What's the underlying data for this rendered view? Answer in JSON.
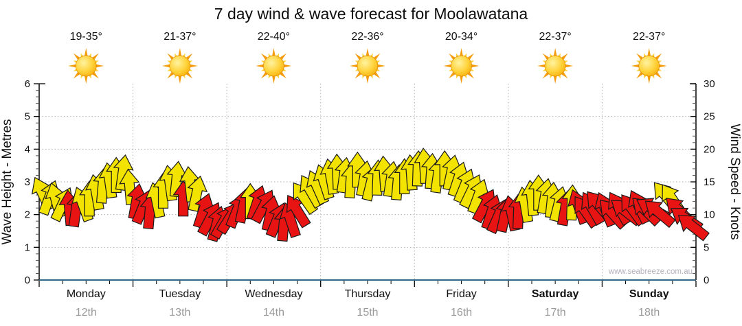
{
  "title": "7 day wind & wave forecast for Moolawatana",
  "watermark": "www.seabreeze.com.au",
  "chart_data": {
    "type": "wind_arrow_timeseries",
    "title": "7 day wind & wave forecast for Moolawatana",
    "left_axis": {
      "label": "Wave Height - Metres",
      "min": 0,
      "max": 6,
      "major_tick_step": 1,
      "minor_tick_step": 0.2
    },
    "right_axis": {
      "label": "Wind Speed - Knots",
      "min": 0,
      "max": 30,
      "major_tick_step": 5,
      "minor_tick_step": 1
    },
    "grid": "dotted, horizontal lines at each metre (1-5), vertical lines at day boundaries",
    "days": [
      {
        "name": "Monday",
        "date": "12th",
        "temp": "19-35°",
        "bold": false
      },
      {
        "name": "Tuesday",
        "date": "13th",
        "temp": "21-37°",
        "bold": false
      },
      {
        "name": "Wednesday",
        "date": "14th",
        "temp": "22-40°",
        "bold": false
      },
      {
        "name": "Thursday",
        "date": "15th",
        "temp": "22-36°",
        "bold": false
      },
      {
        "name": "Friday",
        "date": "16th",
        "temp": "20-34°",
        "bold": false
      },
      {
        "name": "Saturday",
        "date": "17th",
        "temp": "22-37°",
        "bold": true
      },
      {
        "name": "Sunday",
        "date": "18th",
        "temp": "22-37°",
        "bold": true
      }
    ],
    "colors": {
      "moderate_wind_arrow": "#f3e300",
      "light_wind_arrow": "#e81313",
      "arrow_outline": "#1a1a1a",
      "x_axis_line": "#336688",
      "grid_line": "#b0b0b0",
      "date_text": "#999999",
      "watermark_text": "#b3b3bb",
      "sun_core": "#f7a600",
      "sun_ray_long": "#f49c0b",
      "sun_ray_short": "#ffd23d"
    },
    "arrows_per_day": 14,
    "arrow_format": [
      "wind_speed_knots",
      "direction_deg_clockwise_from_up",
      "color_key(y=moderate,r=light)"
    ],
    "arrows": [
      [
        13.2,
        -25,
        "y"
      ],
      [
        12.6,
        20,
        "y"
      ],
      [
        12.2,
        -15,
        "y"
      ],
      [
        11.6,
        25,
        "y"
      ],
      [
        11.0,
        -5,
        "r"
      ],
      [
        10.8,
        8,
        "r"
      ],
      [
        11.6,
        -20,
        "y"
      ],
      [
        12.4,
        0,
        "y"
      ],
      [
        13.4,
        -10,
        "y"
      ],
      [
        14.4,
        5,
        "y"
      ],
      [
        15.2,
        -8,
        "y"
      ],
      [
        16.0,
        0,
        "y"
      ],
      [
        16.4,
        8,
        "y"
      ],
      [
        14.2,
        -5,
        "y"
      ],
      [
        12.0,
        10,
        "r"
      ],
      [
        11.2,
        22,
        "r"
      ],
      [
        10.5,
        5,
        "r"
      ],
      [
        12.2,
        -12,
        "y"
      ],
      [
        13.6,
        0,
        "y"
      ],
      [
        14.8,
        -8,
        "y"
      ],
      [
        15.4,
        6,
        "y"
      ],
      [
        12.4,
        0,
        "r"
      ],
      [
        14.6,
        -6,
        "y"
      ],
      [
        13.2,
        12,
        "y"
      ],
      [
        10.6,
        18,
        "r"
      ],
      [
        9.4,
        28,
        "r"
      ],
      [
        8.6,
        15,
        "r"
      ],
      [
        8.9,
        30,
        "r"
      ],
      [
        9.6,
        32,
        "r"
      ],
      [
        10.6,
        22,
        "r"
      ],
      [
        11.4,
        12,
        "r"
      ],
      [
        12.0,
        0,
        "y"
      ],
      [
        11.8,
        18,
        "r"
      ],
      [
        11.3,
        28,
        "r"
      ],
      [
        10.2,
        12,
        "r"
      ],
      [
        9.2,
        22,
        "r"
      ],
      [
        8.6,
        5,
        "r"
      ],
      [
        9.2,
        -18,
        "r"
      ],
      [
        10.6,
        -32,
        "r"
      ],
      [
        12.6,
        -35,
        "y"
      ],
      [
        13.6,
        -30,
        "y"
      ],
      [
        14.2,
        -24,
        "y"
      ],
      [
        15.0,
        -18,
        "y"
      ],
      [
        15.8,
        -10,
        "y"
      ],
      [
        16.5,
        -2,
        "y"
      ],
      [
        16.0,
        8,
        "y"
      ],
      [
        15.2,
        4,
        "y"
      ],
      [
        16.8,
        0,
        "y"
      ],
      [
        15.5,
        10,
        "y"
      ],
      [
        14.8,
        14,
        "y"
      ],
      [
        15.6,
        2,
        "y"
      ],
      [
        16.2,
        -4,
        "y"
      ],
      [
        15.4,
        9,
        "y"
      ],
      [
        14.9,
        5,
        "y"
      ],
      [
        15.8,
        0,
        "y"
      ],
      [
        16.4,
        -4,
        "y"
      ],
      [
        17.0,
        2,
        "y"
      ],
      [
        17.4,
        -4,
        "y"
      ],
      [
        16.6,
        4,
        "y"
      ],
      [
        16.0,
        8,
        "y"
      ],
      [
        17.0,
        0,
        "y"
      ],
      [
        16.4,
        12,
        "y"
      ],
      [
        15.4,
        18,
        "y"
      ],
      [
        14.4,
        22,
        "y"
      ],
      [
        13.6,
        26,
        "y"
      ],
      [
        12.8,
        20,
        "y"
      ],
      [
        11.4,
        28,
        "r"
      ],
      [
        10.4,
        18,
        "r"
      ],
      [
        9.8,
        24,
        "r"
      ],
      [
        10.0,
        12,
        "r"
      ],
      [
        10.2,
        -12,
        "r"
      ],
      [
        10.5,
        2,
        "r"
      ],
      [
        11.5,
        -10,
        "y"
      ],
      [
        12.5,
        -6,
        "y"
      ],
      [
        13.3,
        0,
        "y"
      ],
      [
        12.8,
        10,
        "y"
      ],
      [
        12.2,
        6,
        "y"
      ],
      [
        11.6,
        14,
        "y"
      ],
      [
        11.0,
        10,
        "r"
      ],
      [
        11.8,
        2,
        "y"
      ],
      [
        11.2,
        -20,
        "r"
      ],
      [
        10.5,
        -35,
        "r"
      ],
      [
        11.0,
        -30,
        "r"
      ],
      [
        11.4,
        -40,
        "r"
      ],
      [
        10.8,
        -22,
        "r"
      ],
      [
        10.2,
        -42,
        "r"
      ],
      [
        11.0,
        -30,
        "r"
      ],
      [
        10.5,
        -52,
        "r"
      ],
      [
        10.8,
        -36,
        "r"
      ],
      [
        11.2,
        -26,
        "r"
      ],
      [
        10.6,
        -46,
        "r"
      ],
      [
        10.9,
        -60,
        "r"
      ],
      [
        10.3,
        -50,
        "r"
      ],
      [
        12.8,
        -40,
        "y"
      ],
      [
        12.3,
        -34,
        "y"
      ],
      [
        10.6,
        -46,
        "r"
      ],
      [
        9.4,
        -56,
        "r"
      ],
      [
        8.2,
        -52,
        "r"
      ]
    ]
  }
}
